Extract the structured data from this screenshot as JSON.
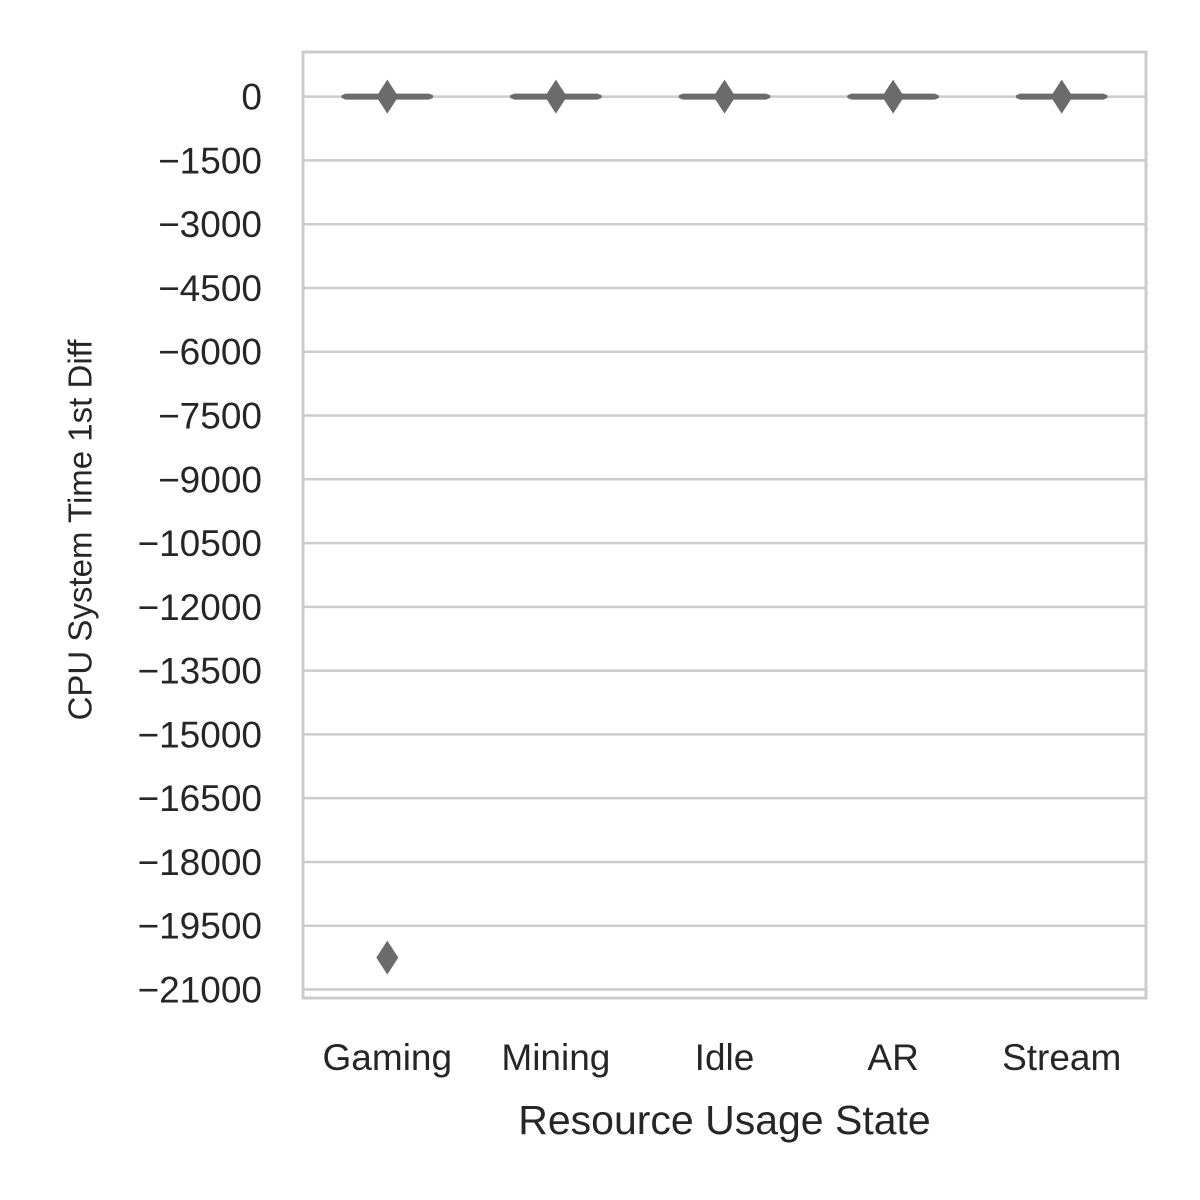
{
  "chart_data": {
    "type": "box",
    "title": "",
    "xlabel": "Resource Usage State",
    "ylabel": "CPU System Time 1st Diff",
    "categories": [
      "Gaming",
      "Mining",
      "Idle",
      "AR",
      "Stream"
    ],
    "yticks": [
      0,
      -1500,
      -3000,
      -4500,
      -6000,
      -7500,
      -9000,
      -10500,
      -12000,
      -13500,
      -15000,
      -16500,
      -18000,
      -19500,
      -21000
    ],
    "ytick_labels": [
      "0",
      "−1500",
      "−3000",
      "−4500",
      "−6000",
      "−7500",
      "−9000",
      "−10500",
      "−12000",
      "−13500",
      "−15000",
      "−16500",
      "−18000",
      "−19500",
      "−21000"
    ],
    "ylim": [
      -21200,
      1050
    ],
    "grid": true,
    "legend": "none",
    "series": [
      {
        "category": "Gaming",
        "median": 0,
        "q1": 0,
        "q3": 0,
        "whisker_low": 0,
        "whisker_high": 0,
        "outliers": [
          0,
          -20250
        ]
      },
      {
        "category": "Mining",
        "median": 0,
        "q1": 0,
        "q3": 0,
        "whisker_low": 0,
        "whisker_high": 0,
        "outliers": [
          0
        ]
      },
      {
        "category": "Idle",
        "median": 0,
        "q1": 0,
        "q3": 0,
        "whisker_low": 0,
        "whisker_high": 0,
        "outliers": [
          0
        ]
      },
      {
        "category": "AR",
        "median": 0,
        "q1": 0,
        "q3": 0,
        "whisker_low": 0,
        "whisker_high": 0,
        "outliers": [
          0
        ]
      },
      {
        "category": "Stream",
        "median": 0,
        "q1": 0,
        "q3": 0,
        "whisker_low": 0,
        "whisker_high": 0,
        "outliers": [
          0
        ]
      }
    ],
    "colors": {
      "box": "#6b6b6b",
      "grid": "#cccccc",
      "frame": "#cccccc",
      "text": "#262626"
    }
  }
}
